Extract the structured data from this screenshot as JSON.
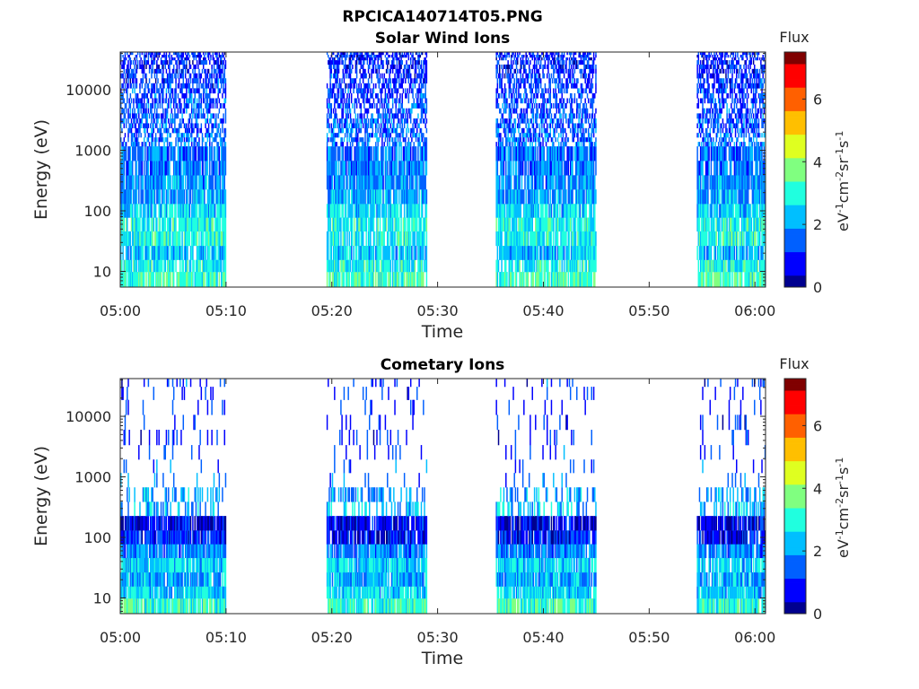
{
  "figure_title": "RPCICA140714T05.PNG",
  "colormap": [
    "#00008f",
    "#0000ff",
    "#0060ff",
    "#00bfff",
    "#20ffdf",
    "#80ff80",
    "#dfff20",
    "#ffbf00",
    "#ff6000",
    "#ff0000",
    "#800000"
  ],
  "chart_data": [
    {
      "type": "heatmap",
      "title": "Solar Wind Ions",
      "xlabel": "Time",
      "ylabel": "Energy (eV)",
      "xticks": [
        "05:00",
        "05:10",
        "05:20",
        "05:30",
        "05:40",
        "05:50",
        "06:00"
      ],
      "yticks": [
        "10",
        "100",
        "1000",
        "10000"
      ],
      "xlim": [
        "05:00",
        "06:01"
      ],
      "ylim": [
        5.5,
        42000
      ],
      "yscale": "log",
      "colorbar": {
        "label": "Flux",
        "unit": "eV-1cm-2sr-1s-1",
        "ticks": [
          "0",
          "2",
          "4",
          "6"
        ],
        "range": [
          0,
          7.5
        ]
      },
      "data_intervals": [
        [
          "05:00",
          "05:10"
        ],
        [
          "05:19:30",
          "05:29"
        ],
        [
          "05:35:30",
          "05:45"
        ],
        [
          "05:54:30",
          "06:01"
        ]
      ],
      "density": "dense",
      "energy_levels": [
        8,
        12,
        20,
        35,
        60,
        100,
        170,
        300,
        500,
        900,
        1500,
        2500,
        4500,
        8000,
        14000,
        25000,
        38000
      ],
      "level_flux": [
        3.3,
        2.8,
        2.3,
        2.8,
        2.9,
        2.5,
        2.0,
        1.9,
        1.7,
        1.6,
        1.6,
        1.4,
        1.3,
        1.2,
        1.1,
        1.0,
        1.0
      ]
    },
    {
      "type": "heatmap",
      "title": "Cometary Ions",
      "xlabel": "Time",
      "ylabel": "Energy (eV)",
      "xticks": [
        "05:00",
        "05:10",
        "05:20",
        "05:30",
        "05:40",
        "05:50",
        "06:00"
      ],
      "yticks": [
        "10",
        "100",
        "1000",
        "10000"
      ],
      "xlim": [
        "05:00",
        "06:01"
      ],
      "ylim": [
        5.5,
        42000
      ],
      "yscale": "log",
      "colorbar": {
        "label": "Flux",
        "unit": "eV-1cm-2sr-1s-1",
        "ticks": [
          "0",
          "2",
          "4",
          "6"
        ],
        "range": [
          0,
          7.5
        ]
      },
      "data_intervals": [
        [
          "05:00",
          "05:10"
        ],
        [
          "05:19:30",
          "05:29"
        ],
        [
          "05:35:30",
          "05:45"
        ],
        [
          "05:54:30",
          "06:01"
        ]
      ],
      "density": "sparse",
      "energy_levels": [
        8,
        12,
        20,
        35,
        60,
        100,
        170,
        300,
        500,
        900,
        1500,
        2500,
        4500,
        8000,
        14000,
        25000,
        38000
      ],
      "level_flux": [
        3.2,
        2.5,
        2.1,
        2.5,
        1.8,
        0.9,
        0.6,
        2.2,
        2.0,
        1.6,
        1.4,
        1.2,
        1.1,
        1.1,
        1.1,
        1.1,
        1.1
      ]
    }
  ]
}
